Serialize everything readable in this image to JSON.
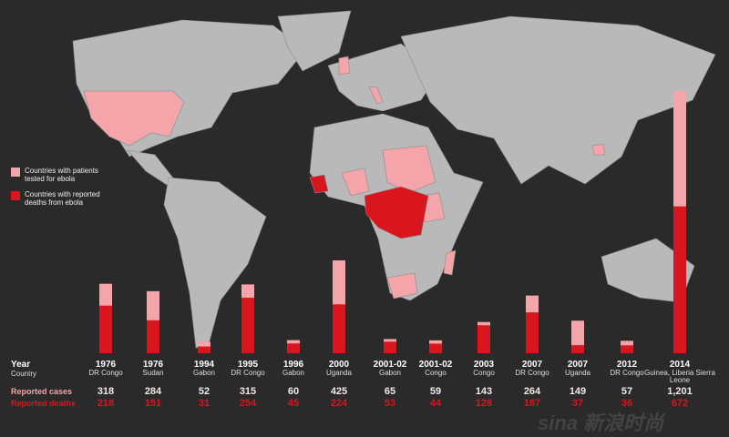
{
  "colors": {
    "background": "#2a2a2b",
    "land": "#b9b9b9",
    "tested": "#f3a5a9",
    "deaths": "#d9161d"
  },
  "legend": {
    "tested": "Countries with patients tested for ebola",
    "deaths": "Countries with reported deaths from ebola"
  },
  "labels": {
    "year": "Year",
    "country": "Country",
    "cases": "Reported cases",
    "deaths": "Reported deaths"
  },
  "watermark": "sina 新浪时尚",
  "chart_data": {
    "type": "bar",
    "stacked": "overlay",
    "categories": [
      "1976",
      "1976",
      "1994",
      "1995",
      "1996",
      "2000",
      "2001-02",
      "2001-02",
      "2003",
      "2007",
      "2007",
      "2012",
      "2014"
    ],
    "countries": [
      "DR Congo",
      "Sudan",
      "Gabon",
      "DR Congo",
      "Gabon",
      "Uganda",
      "Gabon",
      "Congo",
      "Congo",
      "DR Congo",
      "Uganda",
      "DR Congo",
      "Guinea, Liberia Sierra Leone"
    ],
    "series": [
      {
        "name": "Reported cases",
        "values": [
          318,
          284,
          52,
          315,
          60,
          425,
          65,
          59,
          143,
          264,
          149,
          57,
          1201
        ]
      },
      {
        "name": "Reported deaths",
        "values": [
          218,
          151,
          31,
          254,
          45,
          224,
          53,
          44,
          128,
          187,
          37,
          36,
          672
        ]
      }
    ],
    "cases_text": [
      "318",
      "284",
      "52",
      "315",
      "60",
      "425",
      "65",
      "59",
      "143",
      "264",
      "149",
      "57",
      "1,201"
    ],
    "deaths_text": [
      "218",
      "151",
      "31",
      "254",
      "45",
      "224",
      "53",
      "44",
      "128",
      "187",
      "37",
      "36",
      "672"
    ]
  }
}
